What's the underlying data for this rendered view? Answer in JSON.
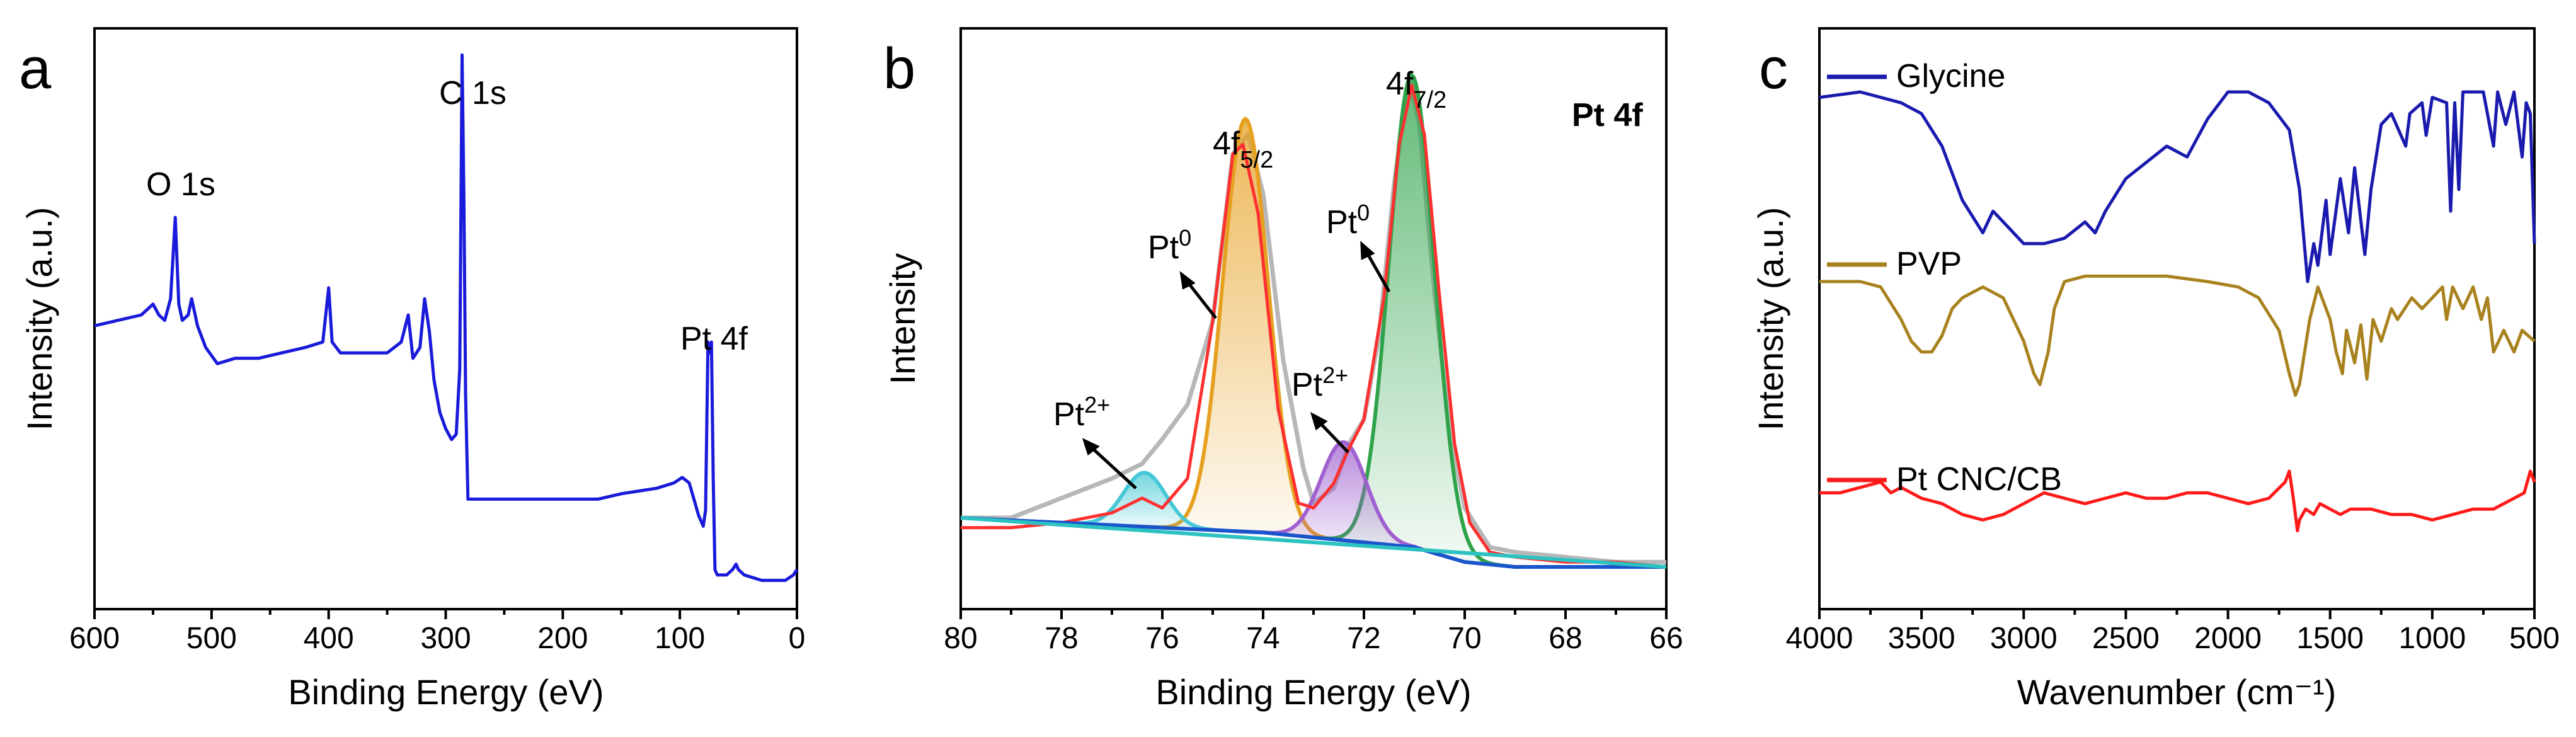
{
  "colors": {
    "survey": "#1a1adb",
    "envelope": "#ff3030",
    "raw": "#b7b7b7",
    "pt0_fit": "#e6a020",
    "pt0_fit_b": "#2ea34a",
    "pt2_fit": "#46c8d6",
    "pt2_fit_b": "#a060d0",
    "background": "#1a55cc",
    "baseline": "#2cc2c2",
    "glycine": "#1a1aae",
    "pvp": "#a8821e",
    "pt_cnc": "#ff1a1a"
  },
  "chart_data": [
    {
      "panel": "a",
      "type": "line",
      "title": "",
      "xlabel": "Binding Energy (eV)",
      "ylabel": "Intensity (a.u.)",
      "xlim": [
        600,
        0
      ],
      "ylim": [
        0,
        1
      ],
      "xticks": [
        "600",
        "500",
        "400",
        "300",
        "200",
        "100",
        "0"
      ],
      "annotations": [
        "O 1s",
        "C 1s",
        "Pt 4f"
      ],
      "series": [
        {
          "name": "survey",
          "x": [
            600,
            580,
            560,
            550,
            545,
            540,
            535,
            531,
            528,
            525,
            520,
            517,
            512,
            505,
            495,
            480,
            460,
            440,
            420,
            405,
            400,
            397,
            390,
            370,
            350,
            338,
            332,
            328,
            322,
            318,
            314,
            310,
            305,
            300,
            295,
            291,
            288,
            286,
            284.5,
            283,
            281,
            279,
            270,
            250,
            220,
            200,
            170,
            150,
            120,
            105,
            98,
            92,
            88,
            84,
            80,
            78,
            76,
            74.5,
            73,
            71.5,
            70,
            68,
            60,
            55,
            52,
            50,
            45,
            30,
            10,
            3,
            0
          ],
          "y": [
            0.48,
            0.49,
            0.5,
            0.52,
            0.5,
            0.49,
            0.53,
            0.68,
            0.52,
            0.49,
            0.5,
            0.53,
            0.48,
            0.44,
            0.41,
            0.42,
            0.42,
            0.43,
            0.44,
            0.45,
            0.55,
            0.45,
            0.43,
            0.43,
            0.43,
            0.45,
            0.5,
            0.42,
            0.44,
            0.53,
            0.47,
            0.38,
            0.32,
            0.29,
            0.27,
            0.28,
            0.4,
            0.98,
            0.72,
            0.35,
            0.16,
            0.16,
            0.16,
            0.16,
            0.16,
            0.16,
            0.16,
            0.17,
            0.18,
            0.19,
            0.2,
            0.19,
            0.16,
            0.13,
            0.11,
            0.14,
            0.45,
            0.43,
            0.45,
            0.2,
            0.03,
            0.02,
            0.02,
            0.03,
            0.04,
            0.03,
            0.02,
            0.01,
            0.01,
            0.02,
            0.03
          ]
        }
      ]
    },
    {
      "panel": "b",
      "type": "line",
      "title": "Pt 4f",
      "xlabel": "Binding Energy (eV)",
      "ylabel": "Intensity",
      "xlim": [
        80,
        66
      ],
      "ylim": [
        0,
        1
      ],
      "xticks": [
        "80",
        "78",
        "76",
        "74",
        "72",
        "70",
        "68",
        "66"
      ],
      "annotations": [
        "4f5/2",
        "4f7/2",
        "Pt0",
        "Pt0",
        "Pt2+",
        "Pt2+"
      ],
      "series": [
        {
          "name": "raw",
          "x": [
            80,
            79,
            78,
            77,
            76.4,
            76,
            75.5,
            75,
            74.6,
            74.3,
            74,
            73.6,
            73.2,
            73,
            72.6,
            72.3,
            72,
            71.7,
            71.4,
            71.1,
            70.9,
            70.6,
            70.3,
            70,
            69.5,
            69,
            68,
            67,
            66
          ],
          "y": [
            0.1,
            0.1,
            0.14,
            0.18,
            0.21,
            0.26,
            0.33,
            0.5,
            0.84,
            0.88,
            0.76,
            0.42,
            0.2,
            0.13,
            0.16,
            0.25,
            0.3,
            0.47,
            0.78,
            1.0,
            0.9,
            0.56,
            0.28,
            0.12,
            0.04,
            0.03,
            0.02,
            0.01,
            0.01
          ]
        },
        {
          "name": "envelope",
          "x": [
            80,
            79,
            78,
            77,
            76.4,
            76,
            75.5,
            75,
            74.6,
            74.4,
            74.1,
            73.7,
            73.3,
            73,
            72.6,
            72.3,
            72,
            71.6,
            71.3,
            71.05,
            70.8,
            70.5,
            70.2,
            69.9,
            69.5,
            69,
            68,
            67,
            66
          ],
          "y": [
            0.08,
            0.08,
            0.09,
            0.11,
            0.14,
            0.12,
            0.18,
            0.5,
            0.84,
            0.86,
            0.72,
            0.32,
            0.13,
            0.12,
            0.17,
            0.24,
            0.3,
            0.55,
            0.86,
            0.98,
            0.88,
            0.55,
            0.25,
            0.09,
            0.03,
            0.02,
            0.01,
            0.01,
            0.0
          ]
        },
        {
          "name": "Pt0 4f5/2",
          "peak": 74.35,
          "height": 0.84,
          "width": 0.45
        },
        {
          "name": "Pt0 4f7/2",
          "peak": 71.05,
          "height": 0.96,
          "width": 0.45
        },
        {
          "name": "Pt2+ 4f5/2",
          "peak": 76.35,
          "height": 0.11,
          "width": 0.42
        },
        {
          "name": "Pt2+ 4f7/2",
          "peak": 72.4,
          "height": 0.2,
          "width": 0.45
        },
        {
          "name": "background",
          "x": [
            80,
            78,
            76,
            74,
            73,
            72,
            71,
            70,
            69,
            68,
            67,
            66
          ],
          "y": [
            0.1,
            0.09,
            0.08,
            0.07,
            0.06,
            0.05,
            0.04,
            0.01,
            0.0,
            0.0,
            0.0,
            0.0
          ]
        },
        {
          "name": "baseline",
          "x": [
            80,
            66
          ],
          "y": [
            0.1,
            0.0
          ]
        }
      ]
    },
    {
      "panel": "c",
      "type": "line",
      "title": "",
      "xlabel": "Wavenumber (cm⁻¹)",
      "ylabel": "Intensity (a.u.)",
      "xlim": [
        4000,
        500
      ],
      "ylim": [
        0,
        1
      ],
      "xticks": [
        "4000",
        "3500",
        "3000",
        "2500",
        "2000",
        "1500",
        "1000",
        "500"
      ],
      "legend": [
        "Glycine",
        "PVP",
        "Pt CNC/CB"
      ],
      "series": [
        {
          "name": "Glycine",
          "x": [
            4000,
            3800,
            3700,
            3600,
            3500,
            3400,
            3300,
            3200,
            3150,
            3100,
            3000,
            2900,
            2800,
            2700,
            2650,
            2600,
            2500,
            2400,
            2300,
            2200,
            2100,
            2000,
            1900,
            1800,
            1700,
            1650,
            1610,
            1580,
            1560,
            1520,
            1500,
            1450,
            1410,
            1380,
            1330,
            1300,
            1250,
            1200,
            1130,
            1110,
            1050,
            1030,
            1000,
            930,
            910,
            890,
            870,
            850,
            800,
            750,
            700,
            680,
            640,
            600,
            560,
            540,
            520,
            500
          ],
          "y": [
            0.89,
            0.9,
            0.89,
            0.88,
            0.86,
            0.8,
            0.7,
            0.64,
            0.68,
            0.66,
            0.62,
            0.62,
            0.63,
            0.66,
            0.64,
            0.68,
            0.74,
            0.77,
            0.8,
            0.78,
            0.85,
            0.9,
            0.9,
            0.88,
            0.83,
            0.72,
            0.55,
            0.62,
            0.58,
            0.7,
            0.6,
            0.74,
            0.64,
            0.76,
            0.6,
            0.72,
            0.84,
            0.86,
            0.8,
            0.86,
            0.88,
            0.82,
            0.89,
            0.88,
            0.68,
            0.88,
            0.72,
            0.9,
            0.9,
            0.9,
            0.8,
            0.9,
            0.84,
            0.9,
            0.78,
            0.88,
            0.86,
            0.62
          ]
        },
        {
          "name": "PVP",
          "x": [
            4000,
            3800,
            3700,
            3600,
            3550,
            3500,
            3450,
            3400,
            3350,
            3300,
            3200,
            3100,
            3000,
            2950,
            2920,
            2880,
            2850,
            2800,
            2700,
            2500,
            2300,
            2100,
            1950,
            1850,
            1750,
            1700,
            1670,
            1650,
            1600,
            1560,
            1500,
            1470,
            1440,
            1420,
            1380,
            1350,
            1320,
            1290,
            1250,
            1200,
            1170,
            1100,
            1050,
            1000,
            950,
            930,
            900,
            850,
            800,
            760,
            730,
            700,
            650,
            600,
            560,
            500
          ],
          "y": [
            0.55,
            0.55,
            0.54,
            0.48,
            0.44,
            0.42,
            0.42,
            0.45,
            0.5,
            0.52,
            0.54,
            0.52,
            0.44,
            0.38,
            0.36,
            0.42,
            0.5,
            0.55,
            0.56,
            0.56,
            0.56,
            0.55,
            0.54,
            0.52,
            0.46,
            0.38,
            0.34,
            0.36,
            0.48,
            0.54,
            0.48,
            0.42,
            0.38,
            0.46,
            0.4,
            0.47,
            0.37,
            0.48,
            0.44,
            0.5,
            0.48,
            0.52,
            0.5,
            0.52,
            0.54,
            0.48,
            0.54,
            0.5,
            0.54,
            0.48,
            0.52,
            0.42,
            0.46,
            0.42,
            0.46,
            0.44
          ]
        },
        {
          "name": "Pt CNC/CB",
          "x": [
            4000,
            3900,
            3800,
            3700,
            3650,
            3600,
            3500,
            3400,
            3300,
            3200,
            3100,
            3000,
            2900,
            2800,
            2700,
            2600,
            2500,
            2400,
            2300,
            2200,
            2100,
            2000,
            1900,
            1800,
            1720,
            1700,
            1680,
            1660,
            1650,
            1620,
            1580,
            1550,
            1500,
            1450,
            1400,
            1300,
            1200,
            1100,
            1000,
            900,
            800,
            700,
            600,
            550,
            520,
            500
          ],
          "y": [
            0.16,
            0.16,
            0.17,
            0.18,
            0.16,
            0.17,
            0.15,
            0.14,
            0.12,
            0.11,
            0.12,
            0.14,
            0.16,
            0.15,
            0.14,
            0.15,
            0.16,
            0.15,
            0.15,
            0.16,
            0.16,
            0.15,
            0.14,
            0.15,
            0.18,
            0.2,
            0.15,
            0.09,
            0.11,
            0.13,
            0.12,
            0.14,
            0.13,
            0.12,
            0.13,
            0.13,
            0.12,
            0.12,
            0.11,
            0.12,
            0.13,
            0.13,
            0.15,
            0.16,
            0.2,
            0.18
          ]
        }
      ]
    }
  ]
}
